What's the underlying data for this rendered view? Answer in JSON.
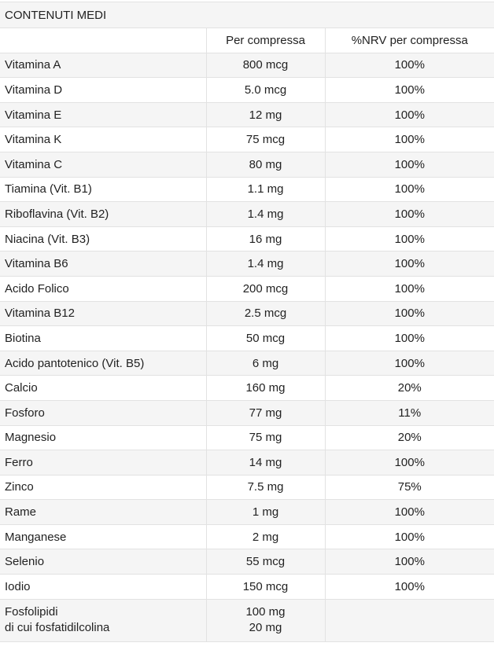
{
  "title": "CONTENUTI MEDI",
  "columns": [
    "",
    "Per compressa",
    "%NRV per compressa"
  ],
  "rows": [
    {
      "name": "Vitamina A",
      "amount": "800 mcg",
      "nrv": "100%"
    },
    {
      "name": "Vitamina D",
      "amount": "5.0 mcg",
      "nrv": "100%"
    },
    {
      "name": "Vitamina E",
      "amount": "12 mg",
      "nrv": "100%"
    },
    {
      "name": "Vitamina K",
      "amount": "75 mcg",
      "nrv": "100%"
    },
    {
      "name": "Vitamina C",
      "amount": "80 mg",
      "nrv": "100%"
    },
    {
      "name": "Tiamina (Vit. B1)",
      "amount": "1.1 mg",
      "nrv": "100%"
    },
    {
      "name": "Riboflavina (Vit. B2)",
      "amount": "1.4 mg",
      "nrv": "100%"
    },
    {
      "name": "Niacina (Vit. B3)",
      "amount": "16 mg",
      "nrv": "100%"
    },
    {
      "name": "Vitamina B6",
      "amount": "1.4 mg",
      "nrv": "100%"
    },
    {
      "name": "Acido Folico",
      "amount": "200 mcg",
      "nrv": "100%"
    },
    {
      "name": "Vitamina B12",
      "amount": "2.5 mcg",
      "nrv": "100%"
    },
    {
      "name": "Biotina",
      "amount": "50 mcg",
      "nrv": "100%"
    },
    {
      "name": "Acido pantotenico (Vit. B5)",
      "amount": "6 mg",
      "nrv": "100%"
    },
    {
      "name": "Calcio",
      "amount": "160 mg",
      "nrv": "20%"
    },
    {
      "name": "Fosforo",
      "amount": "77 mg",
      "nrv": "11%"
    },
    {
      "name": "Magnesio",
      "amount": "75 mg",
      "nrv": "20%"
    },
    {
      "name": "Ferro",
      "amount": "14 mg",
      "nrv": "100%"
    },
    {
      "name": "Zinco",
      "amount": "7.5 mg",
      "nrv": "75%"
    },
    {
      "name": "Rame",
      "amount": "1 mg",
      "nrv": "100%"
    },
    {
      "name": "Manganese",
      "amount": "2 mg",
      "nrv": "100%"
    },
    {
      "name": "Selenio",
      "amount": "55 mcg",
      "nrv": "100%"
    },
    {
      "name": "Iodio",
      "amount": "150 mcg",
      "nrv": "100%"
    }
  ],
  "last_row": {
    "name_line1": "Fosfolipidi",
    "name_line2": "di cui fosfatidilcolina",
    "amount_line1": "100 mg",
    "amount_line2": "20 mg",
    "nrv": ""
  }
}
